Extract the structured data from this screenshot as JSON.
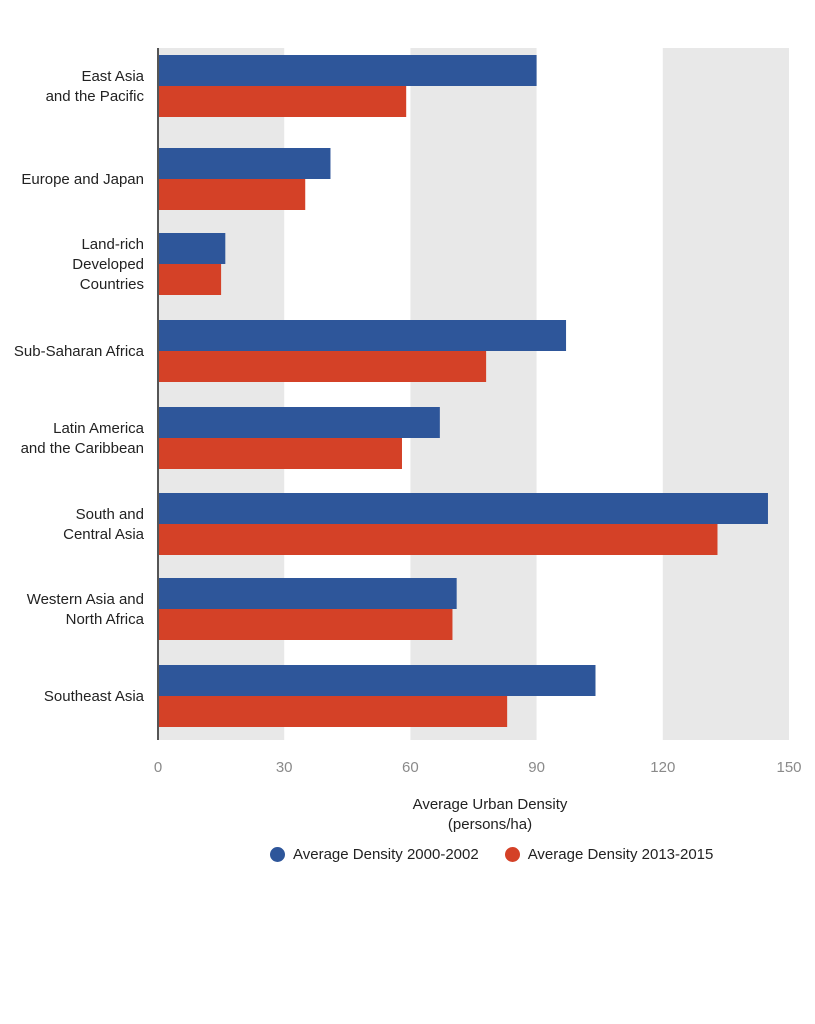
{
  "colors": {
    "series1": "#2e569a",
    "series2": "#d44127",
    "band": "#e8e8e8",
    "axis": "#555555"
  },
  "x_axis": {
    "title_line1": "Average Urban Density",
    "title_line2": "(persons/ha)"
  },
  "legend": {
    "item1": "Average Density 2000-2002",
    "item2": "Average Density 2013-2015"
  },
  "chart_data": {
    "type": "bar",
    "orientation": "horizontal",
    "categories": [
      [
        "East Asia",
        "and the Pacific"
      ],
      [
        "Europe and Japan"
      ],
      [
        "Land-rich",
        "Developed",
        "Countries"
      ],
      [
        "Sub-Saharan Africa"
      ],
      [
        "Latin America",
        "and the Caribbean"
      ],
      [
        "South and",
        "Central Asia"
      ],
      [
        "Western Asia and",
        "North Africa"
      ],
      [
        "Southeast Asia"
      ]
    ],
    "series": [
      {
        "name": "Average Density 2000-2002",
        "values": [
          90,
          41,
          16,
          97,
          67,
          145,
          71,
          104
        ]
      },
      {
        "name": "Average Density 2013-2015",
        "values": [
          59,
          35,
          15,
          78,
          58,
          133,
          70,
          83
        ]
      }
    ],
    "xlim": [
      0,
      150
    ],
    "ticks": [
      0,
      30,
      60,
      90,
      120,
      150
    ],
    "xlabel": "Average Urban Density (persons/ha)",
    "grid": "alternating vertical bands",
    "legend_position": "bottom"
  }
}
